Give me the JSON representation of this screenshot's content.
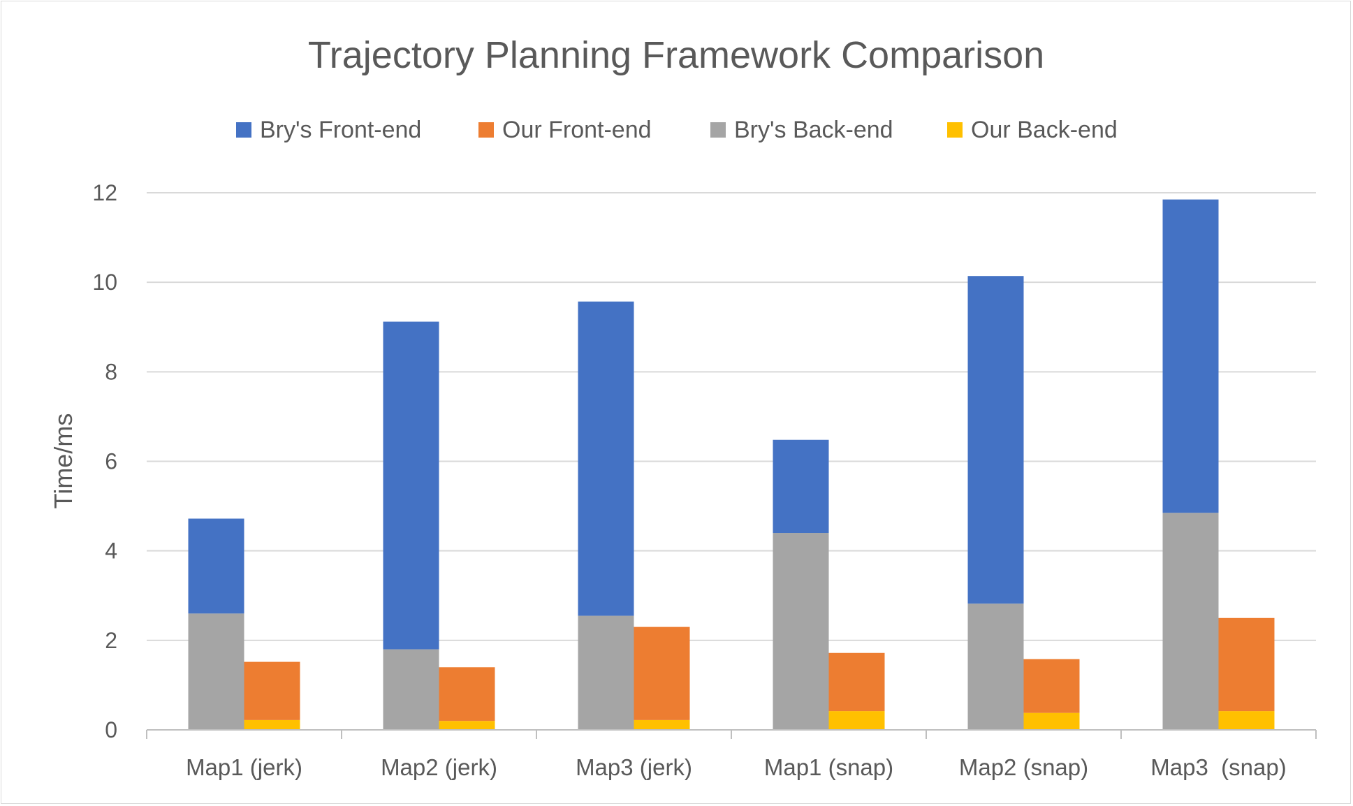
{
  "chart_data": {
    "type": "bar",
    "title": "Trajectory Planning Framework Comparison",
    "xlabel": "",
    "ylabel": "Time/ms",
    "ylim": [
      0,
      12
    ],
    "yticks": [
      0,
      2,
      4,
      6,
      8,
      10,
      12
    ],
    "grid": true,
    "legend_position": "top",
    "categories": [
      "Map1 (jerk)",
      "Map2 (jerk)",
      "Map3 (jerk)",
      "Map1 (snap)",
      "Map2 (snap)",
      "Map3  (snap)"
    ],
    "stacks": [
      {
        "name": "Bry's",
        "series": [
          {
            "name": "Bry's Back-end",
            "color": "#a5a5a5",
            "values": [
              2.6,
              1.8,
              2.55,
              4.4,
              2.82,
              4.85
            ]
          },
          {
            "name": "Bry's Front-end",
            "color": "#4472c4",
            "values": [
              2.12,
              7.32,
              7.02,
              2.08,
              7.32,
              7.0
            ]
          }
        ]
      },
      {
        "name": "Our",
        "series": [
          {
            "name": "Our Back-end",
            "color": "#ffc000",
            "values": [
              0.22,
              0.2,
              0.22,
              0.42,
              0.38,
              0.42
            ]
          },
          {
            "name": "Our Front-end",
            "color": "#ed7d31",
            "values": [
              1.3,
              1.2,
              2.08,
              1.3,
              1.2,
              2.08
            ]
          }
        ]
      }
    ],
    "legend": [
      {
        "label": "Bry's Front-end",
        "color": "#4472c4"
      },
      {
        "label": "Our Front-end",
        "color": "#ed7d31"
      },
      {
        "label": "Bry's Back-end",
        "color": "#a5a5a5"
      },
      {
        "label": "Our Back-end",
        "color": "#ffc000"
      }
    ]
  }
}
